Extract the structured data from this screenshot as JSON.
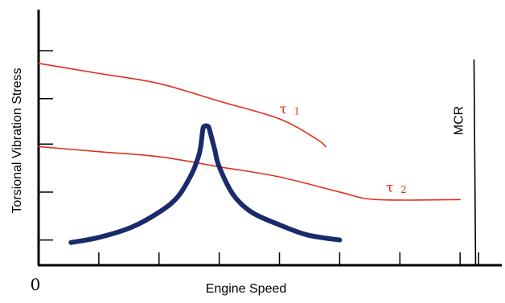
{
  "chart_data": {
    "type": "line",
    "title": "",
    "xlabel": "Engine Speed",
    "ylabel": "Torsional Vibration Stress",
    "origin_label": "0",
    "xlim": [
      0,
      100
    ],
    "ylim": [
      0,
      100
    ],
    "grid": false,
    "legend": "none",
    "x_ticks": [
      13,
      26,
      39,
      52,
      65,
      78,
      91,
      95
    ],
    "y_ticks": [
      10,
      29,
      48,
      66,
      85
    ],
    "series": [
      {
        "name": "τ 1",
        "label_main": "τ",
        "label_sub": "1",
        "color": "#e0301e",
        "points": [
          [
            0,
            80
          ],
          [
            13,
            76
          ],
          [
            26,
            72
          ],
          [
            39,
            65
          ],
          [
            52,
            58
          ],
          [
            60,
            50
          ],
          [
            62,
            47
          ]
        ],
        "label_at": [
          52,
          60
        ]
      },
      {
        "name": "τ 2",
        "label_main": "τ",
        "label_sub": "2",
        "color": "#e0301e",
        "points": [
          [
            0,
            47
          ],
          [
            13,
            45
          ],
          [
            26,
            43
          ],
          [
            39,
            39
          ],
          [
            52,
            35
          ],
          [
            65,
            29
          ],
          [
            73,
            26
          ],
          [
            91,
            26
          ]
        ],
        "label_at": [
          75,
          29
        ]
      },
      {
        "name": "",
        "color": "#1b2a6b",
        "points": [
          [
            7,
            9
          ],
          [
            13,
            11
          ],
          [
            20,
            15
          ],
          [
            26,
            21
          ],
          [
            30,
            27
          ],
          [
            33,
            36
          ],
          [
            34.5,
            43
          ],
          [
            35,
            47
          ],
          [
            35.4,
            53
          ],
          [
            35.7,
            55
          ],
          [
            36.6,
            55
          ],
          [
            37,
            53
          ],
          [
            38,
            46
          ],
          [
            39,
            39
          ],
          [
            42,
            28
          ],
          [
            46,
            21
          ],
          [
            52,
            16
          ],
          [
            58,
            12
          ],
          [
            65,
            10
          ]
        ]
      }
    ],
    "reference_lines": [
      {
        "label": "MCR",
        "x": 94
      }
    ]
  }
}
